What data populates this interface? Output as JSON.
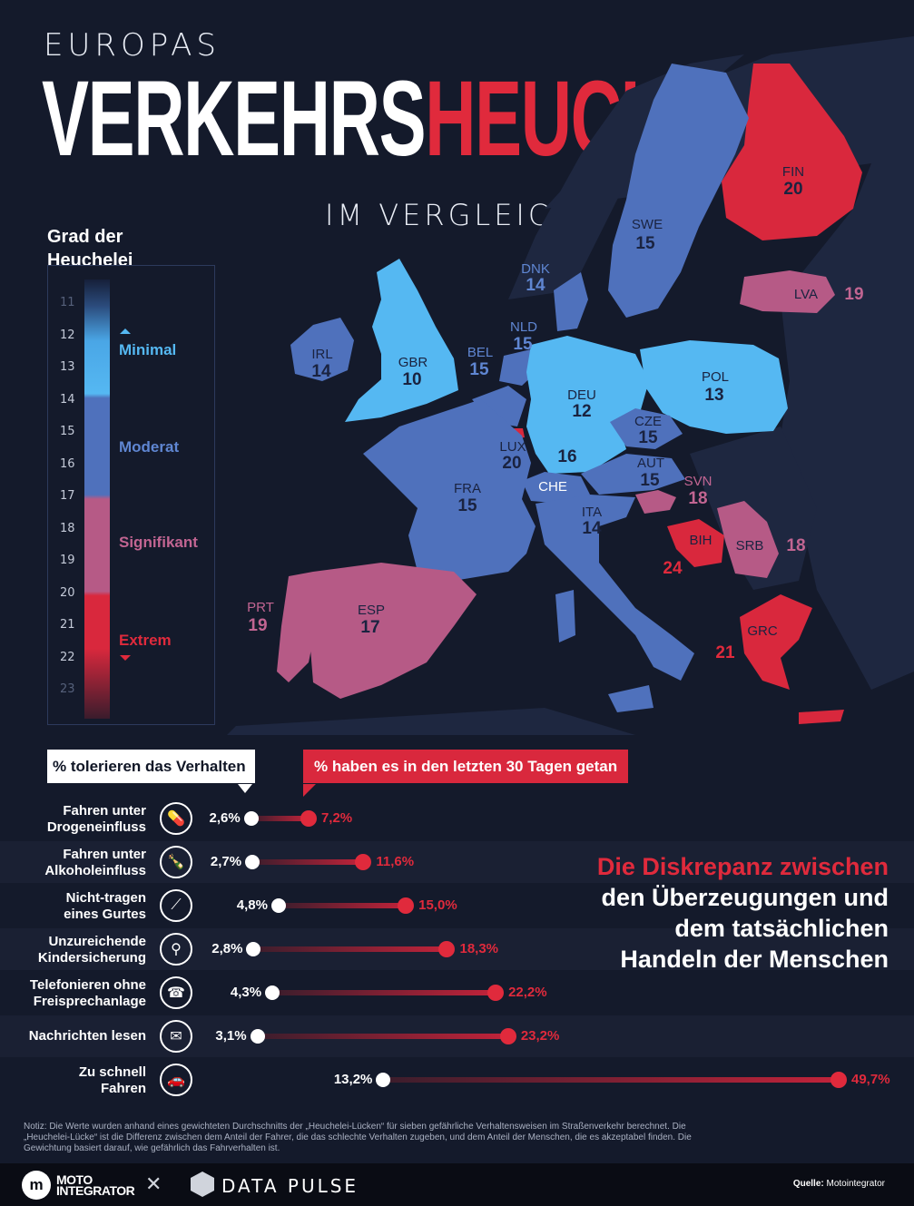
{
  "title": {
    "pre": "EUROPAS",
    "main_white": "VERKEHRS",
    "main_red": "HEUCHLER",
    "post": "IM VERGLEICH"
  },
  "legend": {
    "title_line1": "Grad der",
    "title_line2": "Heuchelei",
    "ticks": [
      "11",
      "12",
      "13",
      "14",
      "15",
      "16",
      "17",
      "18",
      "19",
      "20",
      "21",
      "22",
      "23"
    ],
    "categories": [
      {
        "label": "Minimal",
        "color": "#55b8f2"
      },
      {
        "label": "Moderat",
        "color": "#4f71bc"
      },
      {
        "label": "Signifikant",
        "color": "#b65a86"
      },
      {
        "label": "Extrem",
        "color": "#d9283d"
      }
    ]
  },
  "map": {
    "countries": [
      {
        "code": "FIN",
        "value": "20"
      },
      {
        "code": "SWE",
        "value": "15"
      },
      {
        "code": "DNK",
        "value": "14"
      },
      {
        "code": "LVA",
        "value": "19"
      },
      {
        "code": "IRL",
        "value": "14"
      },
      {
        "code": "GBR",
        "value": "10"
      },
      {
        "code": "NLD",
        "value": "15"
      },
      {
        "code": "BEL",
        "value": "15"
      },
      {
        "code": "DEU",
        "value": "12"
      },
      {
        "code": "POL",
        "value": "13"
      },
      {
        "code": "CZE",
        "value": "15"
      },
      {
        "code": "LUX",
        "value": "20"
      },
      {
        "code": "CHE",
        "value": "16"
      },
      {
        "code": "AUT",
        "value": "15"
      },
      {
        "code": "SVN",
        "value": "18"
      },
      {
        "code": "FRA",
        "value": "15"
      },
      {
        "code": "ITA",
        "value": "14"
      },
      {
        "code": "BIH",
        "value": "24"
      },
      {
        "code": "SRB",
        "value": "18"
      },
      {
        "code": "PRT",
        "value": "19"
      },
      {
        "code": "ESP",
        "value": "17"
      },
      {
        "code": "GRC",
        "value": "21"
      }
    ]
  },
  "chart_data": {
    "type": "dumbbell",
    "series": [
      {
        "name": "% tolerieren das Verhalten",
        "color": "#ffffff",
        "values": [
          2.6,
          2.7,
          4.8,
          2.8,
          4.3,
          3.1,
          13.2
        ]
      },
      {
        "name": "% haben es in den letzten 30 Tagen getan",
        "color": "#e02a3c",
        "values": [
          7.2,
          11.6,
          15.0,
          18.3,
          22.2,
          23.2,
          49.7
        ]
      }
    ],
    "categories": [
      "Fahren unter Drogeneinfluss",
      "Fahren unter Alkoholeinfluss",
      "Nicht-tragen eines Gurtes",
      "Unzureichende Kindersicherung",
      "Telefonieren ohne Freisprechanlage",
      "Nachrichten lesen",
      "Zu schnell Fahren"
    ]
  },
  "rows": [
    {
      "line1": "Fahren unter",
      "line2": "Drogeneinfluss",
      "icon": "pill-bottle-icon",
      "glyph": "💊",
      "tol": "2,6%",
      "did": "7,2%"
    },
    {
      "line1": "Fahren unter",
      "line2": "Alkoholeinfluss",
      "icon": "bottle-icon",
      "glyph": "🍾",
      "tol": "2,7%",
      "did": "11,6%"
    },
    {
      "line1": "Nicht-tragen",
      "line2": "eines Gurtes",
      "icon": "seatbelt-icon",
      "glyph": "⟋",
      "tol": "4,8%",
      "did": "15,0%"
    },
    {
      "line1": "Unzureichende",
      "line2": "Kindersicherung",
      "icon": "stroller-icon",
      "glyph": "⚲",
      "tol": "2,8%",
      "did": "18,3%"
    },
    {
      "line1": "Telefonieren ohne",
      "line2": "Freisprechanlage",
      "icon": "phone-hand-icon",
      "glyph": "☎",
      "tol": "4,3%",
      "did": "22,2%"
    },
    {
      "line1": "Nachrichten lesen",
      "line2": "",
      "icon": "message-phone-icon",
      "glyph": "✉",
      "tol": "3,1%",
      "did": "23,2%"
    },
    {
      "line1": "Zu schnell",
      "line2": "Fahren",
      "icon": "speeding-car-icon",
      "glyph": "🚗",
      "tol": "13,2%",
      "did": "49,7%"
    }
  ],
  "claim": {
    "line1": "Die Diskrepanz zwischen",
    "line2": "den Überzeugungen und",
    "line3": "dem tatsächlichen",
    "line4": "Handeln der Menschen"
  },
  "note": "Notiz: Die Werte wurden anhand eines gewichteten Durchschnitts der „Heuchelei-Lücken“ für sieben gefährliche Verhaltensweisen im Straßenverkehr berechnet. Die „Heuchelei-Lücke“ ist die Differenz zwischen dem Anteil der Fahrer, die das schlechte Verhalten zugeben, und dem Anteil der Menschen, die es akzeptabel finden. Die Gewichtung basiert darauf, wie gefährlich das Fahrverhalten ist.",
  "footer": {
    "brand1_line1": "MOTO",
    "brand1_line2": "INTEGRATOR",
    "x": "✕",
    "brand2": "DATA PULSE",
    "source_label": "Quelle:",
    "source_value": "Motointegrator"
  }
}
